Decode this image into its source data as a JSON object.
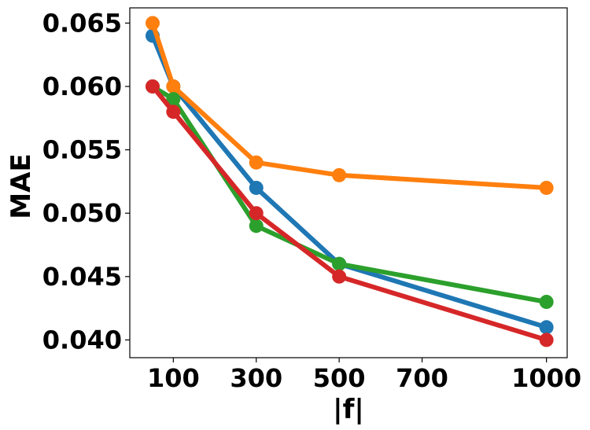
{
  "chart_data": {
    "type": "line",
    "title": "",
    "xlabel": "|f|",
    "ylabel": "MAE",
    "x_ticks": [
      100,
      300,
      500,
      700,
      1000
    ],
    "y_ticks": [
      0.04,
      0.045,
      0.05,
      0.055,
      0.06,
      0.065
    ],
    "y_tick_labels": [
      "0.040",
      "0.045",
      "0.050",
      "0.055",
      "0.060",
      "0.065"
    ],
    "x_tick_labels": [
      "100",
      "300",
      "500",
      "700",
      "1000"
    ],
    "xlim": [
      -5,
      1050
    ],
    "ylim": [
      0.0386,
      0.0662
    ],
    "grid": false,
    "legend": "none",
    "series": [
      {
        "name": "series-1",
        "color": "#1f77b4",
        "x": [
          50,
          100,
          300,
          500,
          1000
        ],
        "y": [
          0.064,
          0.06,
          0.052,
          0.046,
          0.041
        ]
      },
      {
        "name": "series-2",
        "color": "#ff7f0e",
        "x": [
          50,
          100,
          300,
          500,
          1000
        ],
        "y": [
          0.065,
          0.06,
          0.054,
          0.053,
          0.052
        ]
      },
      {
        "name": "series-3",
        "color": "#2ca02c",
        "x": [
          50,
          100,
          300,
          500,
          1000
        ],
        "y": [
          0.06,
          0.059,
          0.049,
          0.046,
          0.043
        ]
      },
      {
        "name": "series-4",
        "color": "#d62728",
        "x": [
          50,
          100,
          300,
          500,
          1000
        ],
        "y": [
          0.06,
          0.058,
          0.05,
          0.045,
          0.04
        ]
      }
    ]
  }
}
